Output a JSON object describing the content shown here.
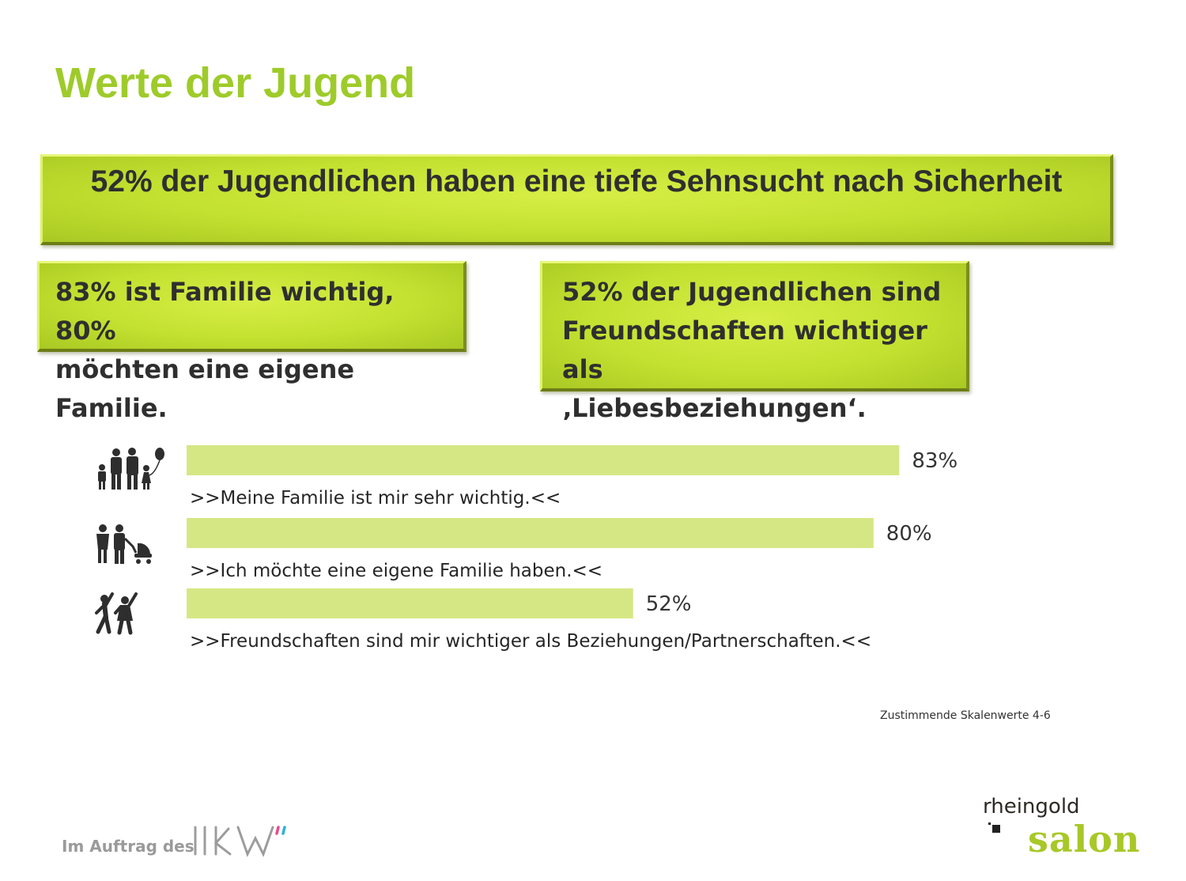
{
  "title": "Werte der Jugend",
  "headline": "52% der Jugendlichen haben eine tiefe Sehnsucht nach Sicherheit",
  "box_left": {
    "line1": "83% ist Familie wichtig, 80%",
    "line2": "möchten eine eigene Familie."
  },
  "box_right": {
    "line1": "52% der Jugendlichen sind",
    "line2": "Freundschaften wichtiger als",
    "line3": "‚Liebesbeziehungen‘."
  },
  "chart_data": {
    "type": "bar",
    "orientation": "horizontal",
    "categories": [
      ">>Meine Familie ist mir sehr wichtig.<<",
      ">>Ich möchte eine eigene Familie haben.<<",
      ">>Freundschaften sind mir wichtiger als Beziehungen/Partnerschaften.<<"
    ],
    "values": [
      83,
      80,
      52
    ],
    "value_labels": [
      "83%",
      "80%",
      "52%"
    ],
    "xlim": [
      0,
      100
    ],
    "icons": [
      "family-with-balloon-icon",
      "family-with-stroller-icon",
      "dancing-friends-icon"
    ],
    "bar_color": "#d5e784"
  },
  "footnote": "Zustimmende Skalenwerte 4-6",
  "footer": {
    "client_label": "Im Auftrag des",
    "client_logo_text": "IKW",
    "brand_top": "rheingold",
    "brand_bottom": "salon"
  },
  "colors": {
    "accent": "#9ecb2a",
    "box": "#c3e130",
    "text": "#2f2f2f"
  }
}
